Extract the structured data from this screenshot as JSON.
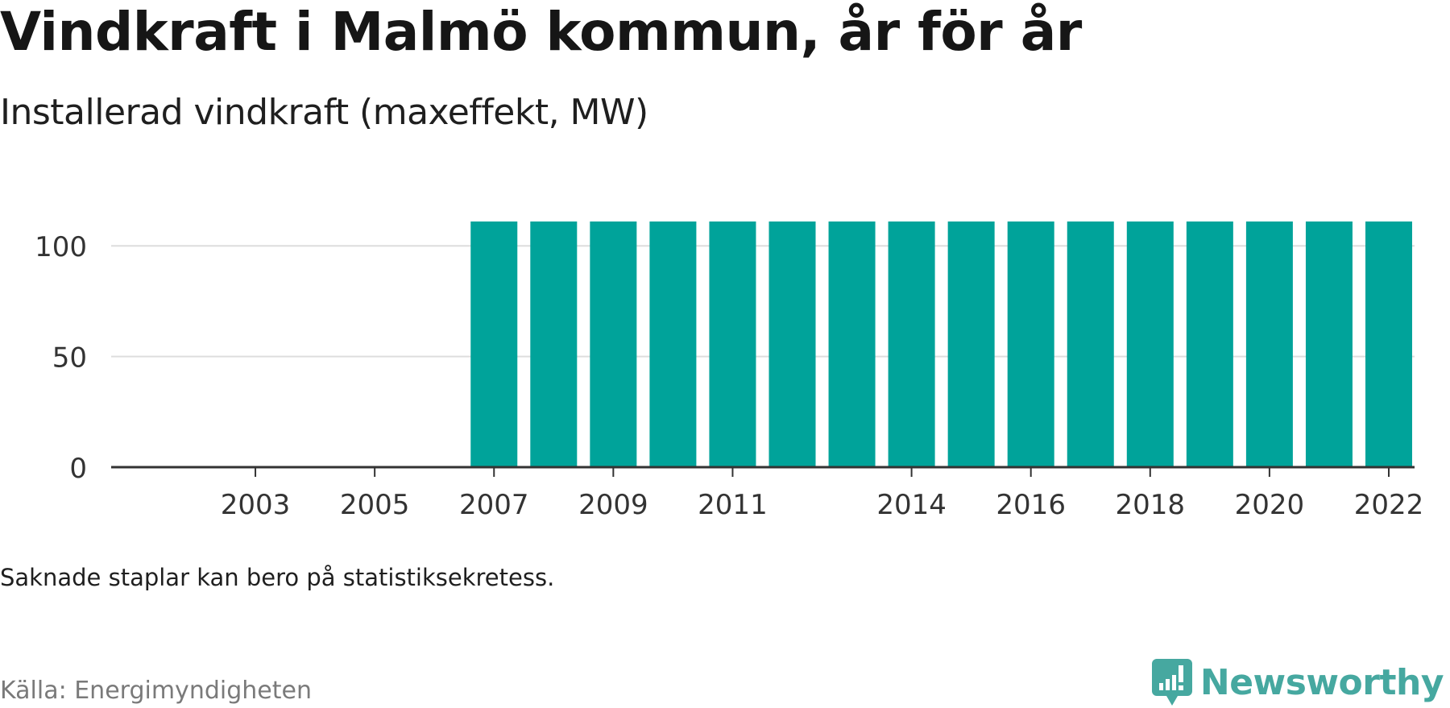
{
  "title": "Vindkraft i Malmö kommun, år för år",
  "subtitle": "Installerad vindkraft (maxeffekt, MW)",
  "note": "Saknade staplar kan bero på statistiksekretess.",
  "source": "Källa: Energimyndigheten",
  "brand": {
    "name": "Newsworthy",
    "icon": "newsworthy-logo-icon",
    "color": "#46a8a0"
  },
  "colors": {
    "bar": "#00a39a",
    "grid": "#dddddd",
    "axis": "#333333",
    "tick_text": "#333333"
  },
  "chart_data": {
    "type": "bar",
    "categories": [
      "2002",
      "2003",
      "2004",
      "2005",
      "2006",
      "2007",
      "2008",
      "2009",
      "2010",
      "2011",
      "2012",
      "2013",
      "2014",
      "2015",
      "2016",
      "2017",
      "2018",
      "2019",
      "2020",
      "2021",
      "2022"
    ],
    "values": [
      0.3,
      0.5,
      0.5,
      0.5,
      0.5,
      111,
      111,
      111,
      111,
      111,
      111,
      111,
      111,
      111,
      111,
      111,
      111,
      111,
      111,
      111,
      111
    ],
    "x_tick_labels": [
      "2003",
      "2005",
      "2007",
      "2009",
      "2011",
      "2014",
      "2016",
      "2018",
      "2020",
      "2022"
    ],
    "y_ticks": [
      0,
      50,
      100
    ],
    "ylim": [
      0,
      115
    ],
    "xlabel": "",
    "ylabel": "",
    "grid": true
  }
}
